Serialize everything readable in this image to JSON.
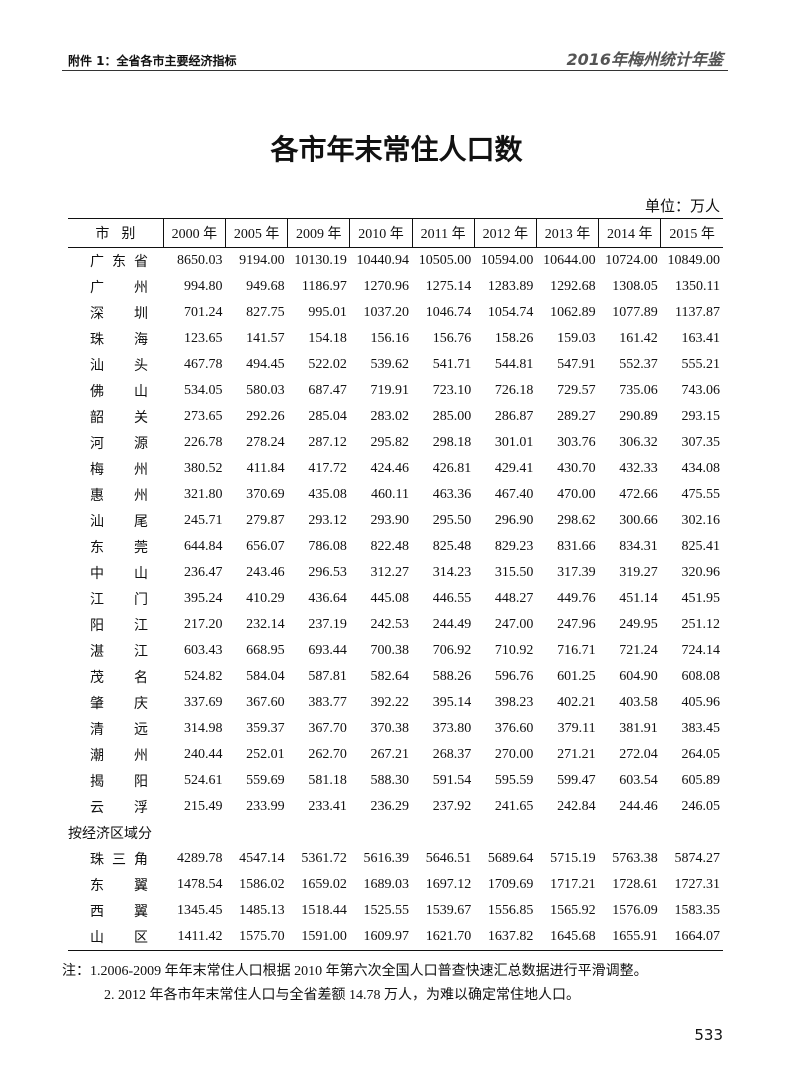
{
  "header": {
    "left": "附件 1：全省各市主要经济指标",
    "right": "2016年梅州统计年鉴"
  },
  "title": "各市年末常住人口数",
  "unit": "单位：万人",
  "table": {
    "headers": [
      "市别",
      "2000 年",
      "2005 年",
      "2009 年",
      "2010 年",
      "2011 年",
      "2012 年",
      "2013 年",
      "2014 年",
      "2015 年"
    ],
    "rows": [
      {
        "name": "广东省",
        "values": [
          "8650.03",
          "9194.00",
          "10130.19",
          "10440.94",
          "10505.00",
          "10594.00",
          "10644.00",
          "10724.00",
          "10849.00"
        ]
      },
      {
        "name": "广州",
        "values": [
          "994.80",
          "949.68",
          "1186.97",
          "1270.96",
          "1275.14",
          "1283.89",
          "1292.68",
          "1308.05",
          "1350.11"
        ]
      },
      {
        "name": "深圳",
        "values": [
          "701.24",
          "827.75",
          "995.01",
          "1037.20",
          "1046.74",
          "1054.74",
          "1062.89",
          "1077.89",
          "1137.87"
        ]
      },
      {
        "name": "珠海",
        "values": [
          "123.65",
          "141.57",
          "154.18",
          "156.16",
          "156.76",
          "158.26",
          "159.03",
          "161.42",
          "163.41"
        ]
      },
      {
        "name": "汕头",
        "values": [
          "467.78",
          "494.45",
          "522.02",
          "539.62",
          "541.71",
          "544.81",
          "547.91",
          "552.37",
          "555.21"
        ]
      },
      {
        "name": "佛山",
        "values": [
          "534.05",
          "580.03",
          "687.47",
          "719.91",
          "723.10",
          "726.18",
          "729.57",
          "735.06",
          "743.06"
        ]
      },
      {
        "name": "韶关",
        "values": [
          "273.65",
          "292.26",
          "285.04",
          "283.02",
          "285.00",
          "286.87",
          "289.27",
          "290.89",
          "293.15"
        ]
      },
      {
        "name": "河源",
        "values": [
          "226.78",
          "278.24",
          "287.12",
          "295.82",
          "298.18",
          "301.01",
          "303.76",
          "306.32",
          "307.35"
        ]
      },
      {
        "name": "梅州",
        "values": [
          "380.52",
          "411.84",
          "417.72",
          "424.46",
          "426.81",
          "429.41",
          "430.70",
          "432.33",
          "434.08"
        ]
      },
      {
        "name": "惠州",
        "values": [
          "321.80",
          "370.69",
          "435.08",
          "460.11",
          "463.36",
          "467.40",
          "470.00",
          "472.66",
          "475.55"
        ]
      },
      {
        "name": "汕尾",
        "values": [
          "245.71",
          "279.87",
          "293.12",
          "293.90",
          "295.50",
          "296.90",
          "298.62",
          "300.66",
          "302.16"
        ]
      },
      {
        "name": "东莞",
        "values": [
          "644.84",
          "656.07",
          "786.08",
          "822.48",
          "825.48",
          "829.23",
          "831.66",
          "834.31",
          "825.41"
        ]
      },
      {
        "name": "中山",
        "values": [
          "236.47",
          "243.46",
          "296.53",
          "312.27",
          "314.23",
          "315.50",
          "317.39",
          "319.27",
          "320.96"
        ]
      },
      {
        "name": "江门",
        "values": [
          "395.24",
          "410.29",
          "436.64",
          "445.08",
          "446.55",
          "448.27",
          "449.76",
          "451.14",
          "451.95"
        ]
      },
      {
        "name": "阳江",
        "values": [
          "217.20",
          "232.14",
          "237.19",
          "242.53",
          "244.49",
          "247.00",
          "247.96",
          "249.95",
          "251.12"
        ]
      },
      {
        "name": "湛江",
        "values": [
          "603.43",
          "668.95",
          "693.44",
          "700.38",
          "706.92",
          "710.92",
          "716.71",
          "721.24",
          "724.14"
        ]
      },
      {
        "name": "茂名",
        "values": [
          "524.82",
          "584.04",
          "587.81",
          "582.64",
          "588.26",
          "596.76",
          "601.25",
          "604.90",
          "608.08"
        ]
      },
      {
        "name": "肇庆",
        "values": [
          "337.69",
          "367.60",
          "383.77",
          "392.22",
          "395.14",
          "398.23",
          "402.21",
          "403.58",
          "405.96"
        ]
      },
      {
        "name": "清远",
        "values": [
          "314.98",
          "359.37",
          "367.70",
          "370.38",
          "373.80",
          "376.60",
          "379.11",
          "381.91",
          "383.45"
        ]
      },
      {
        "name": "潮州",
        "values": [
          "240.44",
          "252.01",
          "262.70",
          "267.21",
          "268.37",
          "270.00",
          "271.21",
          "272.04",
          "264.05"
        ]
      },
      {
        "name": "揭阳",
        "values": [
          "524.61",
          "559.69",
          "581.18",
          "588.30",
          "591.54",
          "595.59",
          "599.47",
          "603.54",
          "605.89"
        ]
      },
      {
        "name": "云浮",
        "values": [
          "215.49",
          "233.99",
          "233.41",
          "236.29",
          "237.92",
          "241.65",
          "242.84",
          "244.46",
          "246.05"
        ]
      }
    ],
    "group_label": "按经济区域分",
    "region_rows": [
      {
        "name": "珠三角",
        "values": [
          "4289.78",
          "4547.14",
          "5361.72",
          "5616.39",
          "5646.51",
          "5689.64",
          "5715.19",
          "5763.38",
          "5874.27"
        ]
      },
      {
        "name": "东翼",
        "values": [
          "1478.54",
          "1586.02",
          "1659.02",
          "1689.03",
          "1697.12",
          "1709.69",
          "1717.21",
          "1728.61",
          "1727.31"
        ]
      },
      {
        "name": "西翼",
        "values": [
          "1345.45",
          "1485.13",
          "1518.44",
          "1525.55",
          "1539.67",
          "1556.85",
          "1565.92",
          "1576.09",
          "1583.35"
        ]
      },
      {
        "name": "山区",
        "values": [
          "1411.42",
          "1575.70",
          "1591.00",
          "1609.97",
          "1621.70",
          "1637.82",
          "1645.68",
          "1655.91",
          "1664.07"
        ]
      }
    ]
  },
  "notes": [
    "注：1.2006-2009 年年末常住人口根据 2010 年第六次全国人口普查快速汇总数据进行平滑调整。",
    "2. 2012 年各市年末常住人口与全省差额 14.78 万人，为难以确定常住地人口。"
  ],
  "page_number": "533"
}
